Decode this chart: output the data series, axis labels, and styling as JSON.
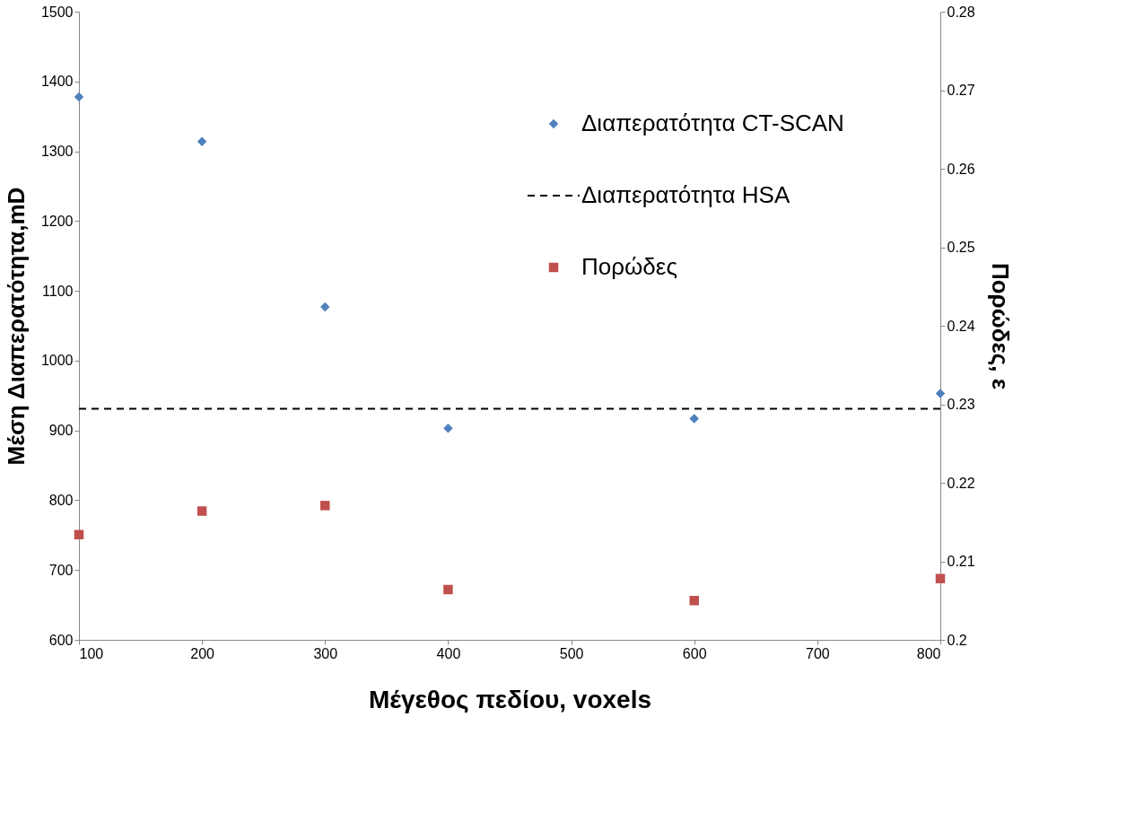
{
  "chart_data": {
    "type": "scatter",
    "xlabel": "Μέγεθος πεδίου, voxels",
    "ylabel": "Μέση Διαπερατότητα,mD",
    "y2label": "Πορώδες, ε",
    "x": [
      100,
      200,
      300,
      400,
      600,
      800
    ],
    "series": [
      {
        "name": "Διαπερατότητα CT-SCAN",
        "color": "#4f81bd",
        "marker": "diamond",
        "values": [
          1378,
          1314,
          1077,
          903,
          917,
          953
        ]
      },
      {
        "name": "Διαπερατότητα HSA",
        "type": "line",
        "line_style": "dashed",
        "color": "#000000",
        "x": [
          100,
          800
        ],
        "values": [
          931,
          931
        ]
      },
      {
        "name": "Πορώδες",
        "axis": "y2",
        "color": "#c0504d",
        "marker": "square",
        "values": [
          0.2134,
          0.2164,
          0.2171,
          0.2064,
          0.205,
          0.2078
        ]
      }
    ],
    "xlim": [
      100,
      800
    ],
    "xticks": [
      100,
      200,
      300,
      400,
      500,
      600,
      700,
      800
    ],
    "ylim": [
      600,
      1500
    ],
    "yticks": [
      600,
      700,
      800,
      900,
      1000,
      1100,
      1200,
      1300,
      1400,
      1500
    ],
    "y2lim": [
      0.2,
      0.28
    ],
    "y2ticks": [
      0.2,
      0.21,
      0.22,
      0.23,
      0.24,
      0.25,
      0.26,
      0.27,
      0.28
    ],
    "grid": false,
    "legend": "top right"
  }
}
